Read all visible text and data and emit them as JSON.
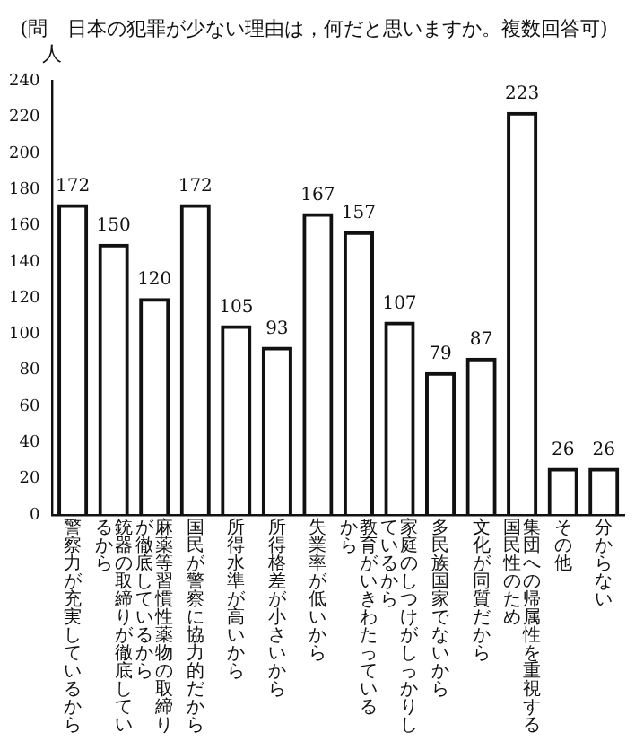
{
  "chart_data": {
    "type": "bar",
    "title": "(問　日本の犯罪が少ない理由は，何だと思いますか。複数回答可)",
    "ylabel": "人",
    "categories": [
      "警察力が充実しているから",
      "銃器の取締りが徹底しているから",
      "麻薬等習慣性薬物の取締りが徹底しているから",
      "国民が警察に協力的だから",
      "所得水準が高いから",
      "所得格差が小さいから",
      "失業率が低いから",
      "教育がいきわたっているから",
      "家庭のしつけがしっかりしているから",
      "多民族国家でないから",
      "文化が同質だから",
      "集団への帰属性を重視する国民性のため",
      "その他",
      "分からない"
    ],
    "values": [
      172,
      150,
      120,
      172,
      105,
      93,
      167,
      157,
      107,
      79,
      87,
      223,
      26,
      26
    ],
    "color": "#111111",
    "ylim": [
      0,
      240
    ],
    "yticks": [
      0,
      20,
      40,
      60,
      80,
      100,
      120,
      140,
      160,
      180,
      200,
      220,
      240
    ],
    "data_labels": true,
    "grid": false,
    "legend": false
  }
}
